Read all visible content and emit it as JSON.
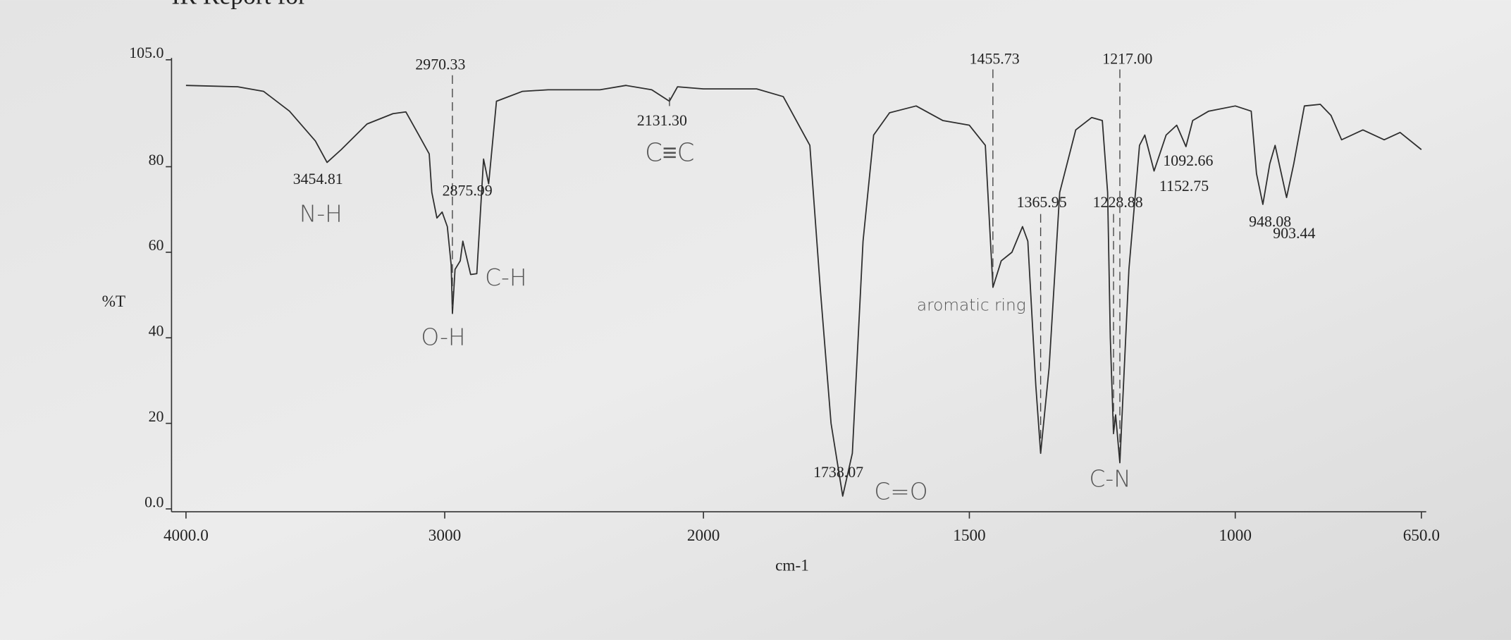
{
  "chart_data": {
    "type": "line",
    "title": "IR Report for",
    "x_label": "cm-1",
    "y_label": "%T",
    "color": "#2e2e2e",
    "grid": false,
    "xlim": [
      4000,
      650
    ],
    "x_scale_break": 2000,
    "ylim": [
      0,
      105
    ],
    "xticks": [
      {
        "value": 4000,
        "label": "4000.0"
      },
      3000,
      2000,
      1500,
      1000,
      {
        "value": 650,
        "label": "650.0"
      }
    ],
    "yticks": [
      {
        "value": 0,
        "label": "0.0"
      },
      20,
      40,
      60,
      80,
      {
        "value": 105,
        "label": "105.0"
      }
    ],
    "x": [
      4000,
      3800,
      3700,
      3600,
      3500,
      3454.81,
      3400,
      3300,
      3200,
      3150,
      3100,
      3060,
      3050,
      3030,
      3010,
      2990,
      2975,
      2970.33,
      2960,
      2940,
      2930,
      2900,
      2875.99,
      2850,
      2830,
      2800,
      2700,
      2600,
      2400,
      2300,
      2200,
      2131.3,
      2100,
      2000,
      1900,
      1850,
      1800,
      1780,
      1760,
      1738.07,
      1720,
      1700,
      1680,
      1650,
      1600,
      1550,
      1500,
      1470,
      1455.73,
      1440,
      1420,
      1400,
      1390,
      1375,
      1365.95,
      1350,
      1330,
      1300,
      1270,
      1250,
      1240,
      1235,
      1228.88,
      1225,
      1217,
      1200,
      1180,
      1170,
      1152.75,
      1130,
      1110,
      1092.66,
      1080,
      1050,
      1000,
      970,
      960,
      948.08,
      935,
      925,
      903.44,
      890,
      870,
      840,
      820,
      800,
      760,
      720,
      690,
      650
    ],
    "values": [
      99,
      98.7,
      97.6,
      93,
      86,
      81,
      84,
      90,
      92.4,
      92.8,
      87.4,
      83,
      74,
      68,
      69.4,
      66,
      57,
      45.7,
      56,
      58,
      62.6,
      54.8,
      55,
      81.8,
      76,
      95.3,
      97.6,
      98,
      98,
      99,
      98,
      95.3,
      98.7,
      98.2,
      98.2,
      96.4,
      85,
      51,
      20,
      3,
      13,
      62.6,
      87.4,
      92.6,
      94.2,
      90.8,
      89.7,
      85,
      51.8,
      58,
      60,
      66,
      62.6,
      28.8,
      13,
      33,
      74,
      88.6,
      91.5,
      90.8,
      74,
      40,
      17.6,
      22,
      10.8,
      56,
      85,
      87.4,
      79,
      87.4,
      89.7,
      84.7,
      90.8,
      93,
      94.2,
      93,
      78.4,
      71.2,
      80.7,
      85,
      72.8,
      80.7,
      94.2,
      94.6,
      92,
      86.3,
      88.6,
      86.3,
      88,
      84
    ],
    "peak_labels": [
      {
        "value": 3454.81,
        "label": "3454.81"
      },
      {
        "value": 2970.33,
        "label": "2970.33"
      },
      {
        "value": 2875.99,
        "label": "2875.99"
      },
      {
        "value": 2131.3,
        "label": "2131.30"
      },
      {
        "value": 1738.07,
        "label": "1738.07"
      },
      {
        "value": 1455.73,
        "label": "1455.73"
      },
      {
        "value": 1365.95,
        "label": "1365.95"
      },
      {
        "value": 1228.88,
        "label": "1228.88"
      },
      {
        "value": 1217,
        "label": "1217.00"
      },
      {
        "value": 1152.75,
        "label": "1152.75"
      },
      {
        "value": 1092.66,
        "label": "1092.66"
      },
      {
        "value": 948.08,
        "label": "948.08"
      },
      {
        "value": 903.44,
        "label": "903.44"
      }
    ],
    "annotations": [
      "N-H",
      "O-H",
      "C-H",
      "C≡C",
      "aromatic ring",
      "C=O",
      "C-N"
    ]
  }
}
